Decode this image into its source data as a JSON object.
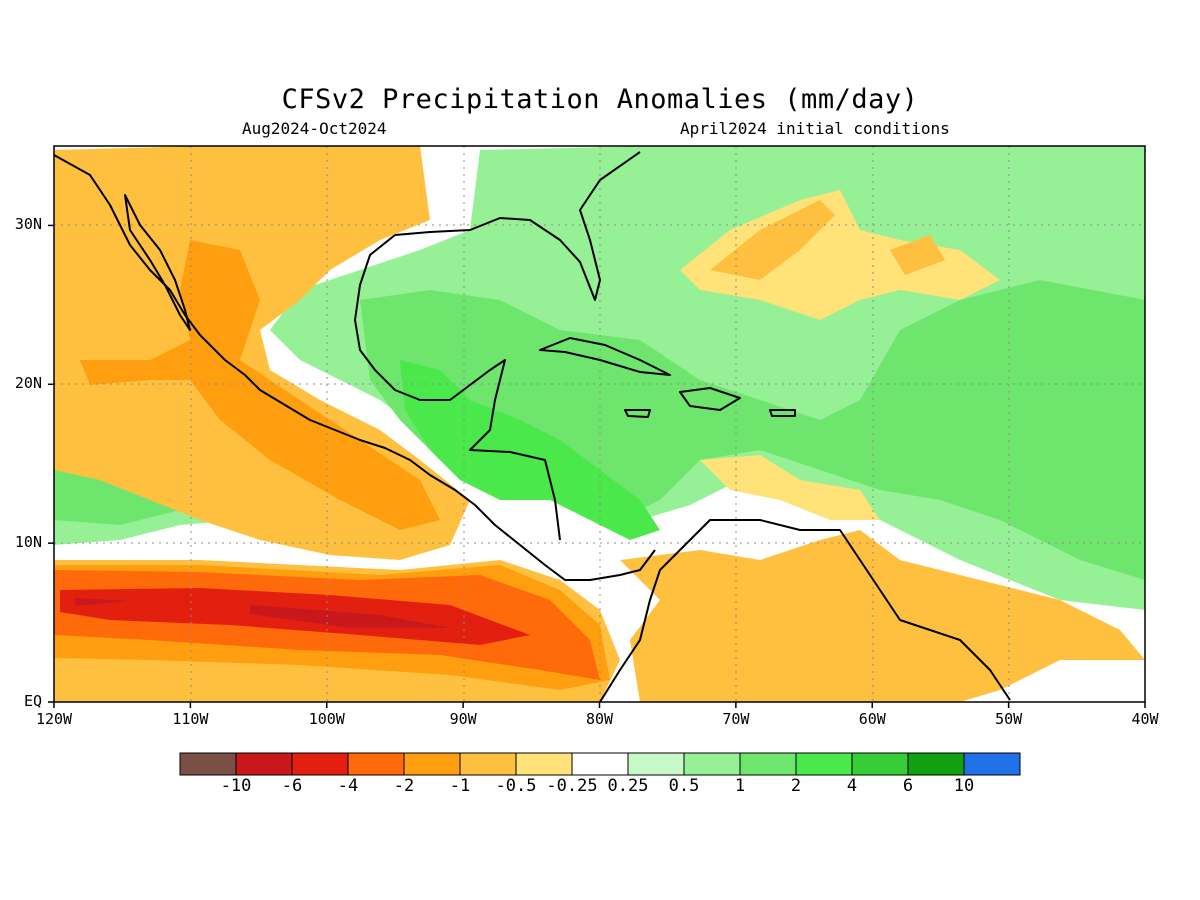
{
  "title": "CFSv2 Precipitation Anomalies (mm/day)",
  "period": "Aug2024-Oct2024",
  "initial_conditions": "April2024 initial conditions",
  "map": {
    "lon_range": [
      -120,
      -40
    ],
    "lat_range": [
      0,
      35
    ],
    "lat_ticks": [
      {
        "value": 0,
        "label": "EQ"
      },
      {
        "value": 10,
        "label": "10N"
      },
      {
        "value": 20,
        "label": "20N"
      },
      {
        "value": 30,
        "label": "30N"
      }
    ],
    "lon_ticks": [
      {
        "value": -120,
        "label": "120W"
      },
      {
        "value": -110,
        "label": "110W"
      },
      {
        "value": -100,
        "label": "100W"
      },
      {
        "value": -90,
        "label": "90W"
      },
      {
        "value": -80,
        "label": "80W"
      },
      {
        "value": -70,
        "label": "70W"
      },
      {
        "value": -60,
        "label": "60W"
      },
      {
        "value": -50,
        "label": "50W"
      },
      {
        "value": -40,
        "label": "40W"
      }
    ]
  },
  "colorbar": {
    "colors": [
      "#7a5046",
      "#c8181c",
      "#e3200f",
      "#ff6a0a",
      "#ff9f10",
      "#ffc040",
      "#ffe278",
      "#ffffff",
      "#c8fac8",
      "#96f096",
      "#6ee66e",
      "#4ae84a",
      "#37cd37",
      "#10a010",
      "#2070e8"
    ],
    "labels": [
      "-10",
      "-6",
      "-4",
      "-2",
      "-1",
      "-0.5",
      "-0.25",
      "0.25",
      "0.5",
      "1",
      "2",
      "4",
      "6",
      "10"
    ]
  },
  "colors": {
    "grid": "#8c8c8c",
    "coast": "#000000"
  }
}
